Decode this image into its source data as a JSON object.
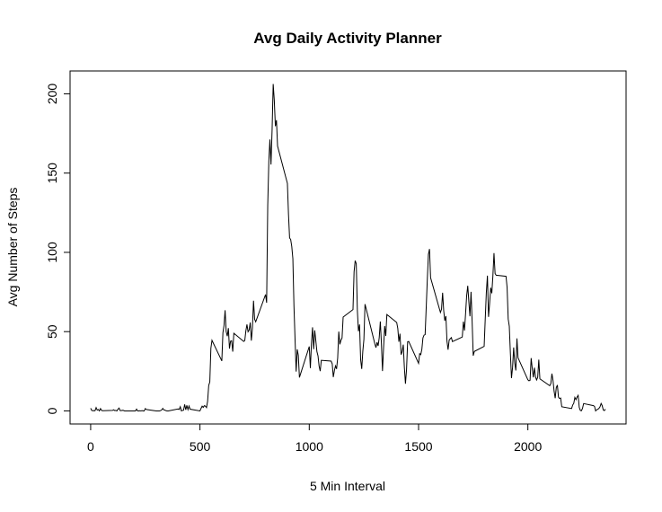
{
  "chart_data": {
    "type": "line",
    "title": "Avg Daily Activity Planner",
    "x_label": "5 Min Interval",
    "y_label": "Avg Number of Steps",
    "color": "#000000",
    "x": [
      0,
      5,
      10,
      15,
      20,
      25,
      30,
      35,
      40,
      45,
      50,
      55,
      100,
      105,
      110,
      115,
      120,
      125,
      130,
      135,
      140,
      145,
      150,
      155,
      200,
      205,
      210,
      215,
      220,
      225,
      230,
      235,
      240,
      245,
      250,
      255,
      300,
      305,
      310,
      315,
      320,
      325,
      330,
      335,
      340,
      345,
      350,
      355,
      400,
      405,
      410,
      415,
      420,
      425,
      430,
      435,
      440,
      445,
      450,
      455,
      500,
      505,
      510,
      515,
      520,
      525,
      530,
      535,
      540,
      545,
      550,
      555,
      600,
      605,
      610,
      615,
      620,
      625,
      630,
      635,
      640,
      645,
      650,
      655,
      700,
      705,
      710,
      715,
      720,
      725,
      730,
      735,
      740,
      745,
      750,
      755,
      800,
      805,
      810,
      815,
      820,
      825,
      830,
      835,
      840,
      845,
      850,
      855,
      900,
      905,
      910,
      915,
      920,
      925,
      930,
      935,
      940,
      945,
      950,
      955,
      1000,
      1005,
      1010,
      1015,
      1020,
      1025,
      1030,
      1035,
      1040,
      1045,
      1050,
      1055,
      1100,
      1105,
      1110,
      1115,
      1120,
      1125,
      1130,
      1135,
      1140,
      1145,
      1150,
      1155,
      1200,
      1205,
      1210,
      1215,
      1220,
      1225,
      1230,
      1235,
      1240,
      1245,
      1250,
      1255,
      1300,
      1305,
      1310,
      1315,
      1320,
      1325,
      1330,
      1335,
      1340,
      1345,
      1350,
      1355,
      1400,
      1405,
      1410,
      1415,
      1420,
      1425,
      1430,
      1435,
      1440,
      1445,
      1450,
      1455,
      1500,
      1505,
      1510,
      1515,
      1520,
      1525,
      1530,
      1535,
      1540,
      1545,
      1550,
      1555,
      1600,
      1605,
      1610,
      1615,
      1620,
      1625,
      1630,
      1635,
      1640,
      1645,
      1650,
      1655,
      1700,
      1705,
      1710,
      1715,
      1720,
      1725,
      1730,
      1735,
      1740,
      1745,
      1750,
      1755,
      1800,
      1805,
      1810,
      1815,
      1820,
      1825,
      1830,
      1835,
      1840,
      1845,
      1850,
      1855,
      1900,
      1905,
      1910,
      1915,
      1920,
      1925,
      1930,
      1935,
      1940,
      1945,
      1950,
      1955,
      2000,
      2005,
      2010,
      2015,
      2020,
      2025,
      2030,
      2035,
      2040,
      2045,
      2050,
      2055,
      2100,
      2105,
      2110,
      2115,
      2120,
      2125,
      2130,
      2135,
      2140,
      2145,
      2150,
      2155,
      2200,
      2205,
      2210,
      2215,
      2220,
      2225,
      2230,
      2235,
      2240,
      2245,
      2250,
      2255,
      2300,
      2305,
      2310,
      2315,
      2320,
      2325,
      2330,
      2335,
      2340,
      2345,
      2350,
      2355
    ],
    "values": [
      1.7,
      0.3,
      0.1,
      0.2,
      0.1,
      2.1,
      0.5,
      0.9,
      0,
      1.5,
      0.3,
      0.1,
      0.3,
      0.7,
      0.2,
      0.3,
      0,
      1.1,
      1.8,
      0.2,
      0.2,
      0.4,
      0.3,
      0,
      0,
      0,
      1.1,
      0,
      0,
      0.1,
      0,
      0.2,
      0,
      0,
      1.5,
      0.9,
      0,
      0,
      0,
      0,
      0.2,
      0.6,
      1.6,
      0.6,
      0.5,
      0.1,
      0,
      0,
      1.2,
      0.9,
      2.6,
      0,
      0.3,
      0.4,
      4.1,
      0.7,
      3.5,
      0.8,
      3.1,
      1.1,
      0,
      1.6,
      3,
      2.2,
      3.3,
      3,
      2.1,
      6.1,
      16,
      18.3,
      39.5,
      44.5,
      31.5,
      49.3,
      53.8,
      63.5,
      50,
      47.1,
      52.2,
      39.3,
      44,
      44.2,
      37.4,
      49,
      43.8,
      44.4,
      50.5,
      54.5,
      49.9,
      51,
      55.7,
      44.3,
      52.3,
      69.5,
      57.8,
      56.2,
      73.4,
      68.2,
      129.4,
      157.5,
      171.2,
      155.4,
      177.3,
      206.2,
      195.9,
      179.6,
      183.4,
      167,
      143.5,
      124,
      109.1,
      108.1,
      103.7,
      96,
      66.2,
      45.2,
      24.8,
      38.8,
      35,
      21.1,
      40.6,
      27,
      42.4,
      52.7,
      38.9,
      50.8,
      44.3,
      37.4,
      34.7,
      28.3,
      25.1,
      31.9,
      31.4,
      29.7,
      21.3,
      25.5,
      28.4,
      26.5,
      33.4,
      50,
      42,
      44.6,
      46,
      59.2,
      63.9,
      87.7,
      94.8,
      92.8,
      63.4,
      50.2,
      54.5,
      32.4,
      26.5,
      37.7,
      45.1,
      67.3,
      42.3,
      39.9,
      43.3,
      41,
      46.2,
      56.4,
      42.8,
      25.1,
      40,
      53.5,
      47.3,
      60.8,
      55.8,
      52,
      43.6,
      48.7,
      35.5,
      37.5,
      41.8,
      27.5,
      17.1,
      26.1,
      43.6,
      43.8,
      30,
      36.1,
      35.5,
      38.8,
      46,
      47.8,
      48.1,
      65.3,
      82.9,
      98.7,
      102.1,
      84,
      62.1,
      64.1,
      74.5,
      63.2,
      56.9,
      59.8,
      43.9,
      38.6,
      44.7,
      45.5,
      46.2,
      43.7,
      46.6,
      56.3,
      50.7,
      61.2,
      72.7,
      78.9,
      68.9,
      59.7,
      75.1,
      56.5,
      34.8,
      37.5,
      40.7,
      58,
      74.7,
      85.3,
      59.3,
      67.8,
      77.7,
      74.2,
      85.3,
      99.5,
      86.6,
      85.6,
      84.9,
      77.8,
      58,
      53.4,
      36.3,
      20.7,
      27.4,
      40,
      30.2,
      25.5,
      45.7,
      33.5,
      19.6,
      19,
      19.3,
      33.3,
      26.8,
      21.2,
      27.3,
      21.3,
      19.5,
      21.3,
      32.3,
      20.2,
      15.9,
      17.2,
      23.5,
      19.2,
      12.5,
      8,
      14.7,
      16.3,
      8.7,
      7.8,
      8.1,
      2.6,
      1.5,
      3.7,
      4.8,
      8.5,
      7.1,
      8.7,
      9.8,
      2.2,
      0.3,
      0.1,
      1.6,
      4.6,
      3.3,
      2.8,
      0,
      0.8,
      1,
      1.6,
      2.6,
      4.7,
      3.3,
      0.6,
      0.2,
      1.1
    ],
    "xlim": [
      -94.2,
      2449.2
    ],
    "ylim": [
      -8.25,
      214.42
    ],
    "xticks": [
      0,
      500,
      1000,
      1500,
      2000
    ],
    "yticks": [
      0,
      50,
      100,
      150,
      200
    ]
  }
}
